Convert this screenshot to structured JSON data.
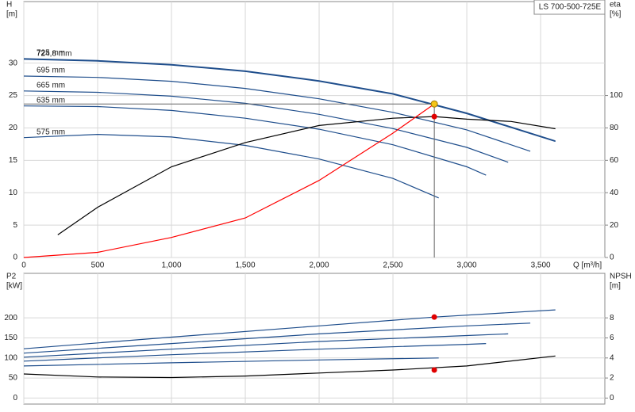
{
  "chart_data": [
    {
      "type": "line",
      "title": "LS 700-500-725E",
      "ylabel": [
        "H",
        "[m]"
      ],
      "y2label": [
        "eta",
        "[%]"
      ],
      "xlabel": "Q [m³/h]",
      "xlim": [
        0,
        3935
      ],
      "ylim": [
        0,
        39.5
      ],
      "y2lim": [
        0,
        158
      ],
      "xticks": [
        0,
        500,
        {
          "value": 1000,
          "label": "1,000"
        },
        {
          "value": 1500,
          "label": "1,500"
        },
        {
          "value": 2000,
          "label": "2,000"
        },
        {
          "value": 2500,
          "label": "2,500"
        },
        {
          "value": 3000,
          "label": "3,000"
        },
        {
          "value": 3500,
          "label": "3,500"
        }
      ],
      "yticks": [
        0,
        5,
        10,
        15,
        20,
        25,
        30
      ],
      "y2ticks": [
        0,
        20,
        40,
        60,
        80,
        100
      ],
      "grid": true,
      "series": [
        {
          "name": "725 mm",
          "color": "#1f4e8c",
          "x": [
            0,
            500,
            1000,
            1500,
            2000,
            2500,
            3000,
            3600
          ],
          "values": [
            30.7,
            30.4,
            29.8,
            28.8,
            27.3,
            25.3,
            22.3,
            18.0
          ]
        },
        {
          "name": "724,8 mm",
          "color": "#1f4e8c",
          "x": [
            0,
            500,
            1000,
            1500,
            2000,
            2500,
            3000,
            3600
          ],
          "values": [
            30.6,
            30.3,
            29.7,
            28.7,
            27.2,
            25.2,
            22.2,
            17.9
          ]
        },
        {
          "name": "695 mm",
          "color": "#1f4e8c",
          "x": [
            0,
            500,
            1000,
            1500,
            2000,
            2500,
            3000,
            3430
          ],
          "values": [
            28.0,
            27.8,
            27.2,
            26.1,
            24.5,
            22.4,
            19.7,
            16.4
          ]
        },
        {
          "name": "665 mm",
          "color": "#1f4e8c",
          "x": [
            0,
            500,
            1000,
            1500,
            2000,
            2500,
            3000,
            3280
          ],
          "values": [
            25.7,
            25.5,
            24.9,
            23.8,
            22.1,
            19.9,
            17.0,
            14.7
          ]
        },
        {
          "name": "635 mm",
          "color": "#1f4e8c",
          "x": [
            0,
            500,
            1000,
            1500,
            2000,
            2500,
            3000,
            3130
          ],
          "values": [
            23.4,
            23.3,
            22.7,
            21.5,
            19.8,
            17.4,
            14.0,
            12.7
          ]
        },
        {
          "name": "575 mm",
          "color": "#1f4e8c",
          "x": [
            0,
            500,
            1000,
            1500,
            2000,
            2500,
            2810
          ],
          "values": [
            18.5,
            19.0,
            18.6,
            17.3,
            15.2,
            12.2,
            9.2
          ]
        },
        {
          "color": "#000000",
          "axis": "y2",
          "x": [
            230,
            500,
            1000,
            1500,
            2000,
            2500,
            2780,
            3000,
            3300,
            3600
          ],
          "values": [
            14,
            31,
            56,
            71,
            81.5,
            86,
            87,
            85.4,
            84,
            79.5
          ]
        },
        {
          "color": "#ff0000",
          "x": [
            0,
            500,
            1000,
            1500,
            2000,
            2500,
            2780
          ],
          "values": [
            0,
            0.8,
            3.1,
            6.1,
            11.9,
            19.2,
            23.7
          ]
        }
      ],
      "duty_point": {
        "x": 2780,
        "y": 23.7,
        "y2": 87
      }
    },
    {
      "type": "line",
      "ylabel": [
        "P2",
        "[kW]"
      ],
      "y2label": [
        "NPSH",
        "[m]"
      ],
      "xlim": [
        0,
        3935
      ],
      "ylim": [
        -15,
        311
      ],
      "y2lim": [
        -0.6,
        12.44
      ],
      "yticks": [
        0,
        50,
        100,
        150,
        200
      ],
      "y2ticks": [
        0,
        2,
        4,
        6,
        8
      ],
      "grid": true,
      "series": [
        {
          "color": "#1f4e8c",
          "x": [
            0,
            1000,
            2000,
            2780,
            3600
          ],
          "values": [
            123,
            152,
            180,
            202,
            220
          ]
        },
        {
          "color": "#1f4e8c",
          "x": [
            0,
            1000,
            2000,
            3000,
            3430
          ],
          "values": [
            112,
            136,
            160,
            180,
            187
          ]
        },
        {
          "color": "#1f4e8c",
          "x": [
            0,
            1000,
            2000,
            3000,
            3280
          ],
          "values": [
            102,
            122,
            141,
            156,
            160
          ]
        },
        {
          "color": "#1f4e8c",
          "x": [
            0,
            1000,
            2000,
            3000,
            3130
          ],
          "values": [
            92,
            108,
            122,
            134,
            136
          ]
        },
        {
          "color": "#1f4e8c",
          "x": [
            0,
            1000,
            2000,
            2810
          ],
          "values": [
            80,
            88,
            95,
            100
          ]
        },
        {
          "color": "#000000",
          "axis": "y2",
          "x": [
            0,
            500,
            1000,
            1500,
            2000,
            2500,
            3000,
            3600
          ],
          "values": [
            2.4,
            2.1,
            2.05,
            2.2,
            2.5,
            2.8,
            3.2,
            4.2
          ]
        }
      ],
      "duty_point": {
        "x": 2780,
        "y": 202,
        "y2": 2.8
      }
    }
  ]
}
